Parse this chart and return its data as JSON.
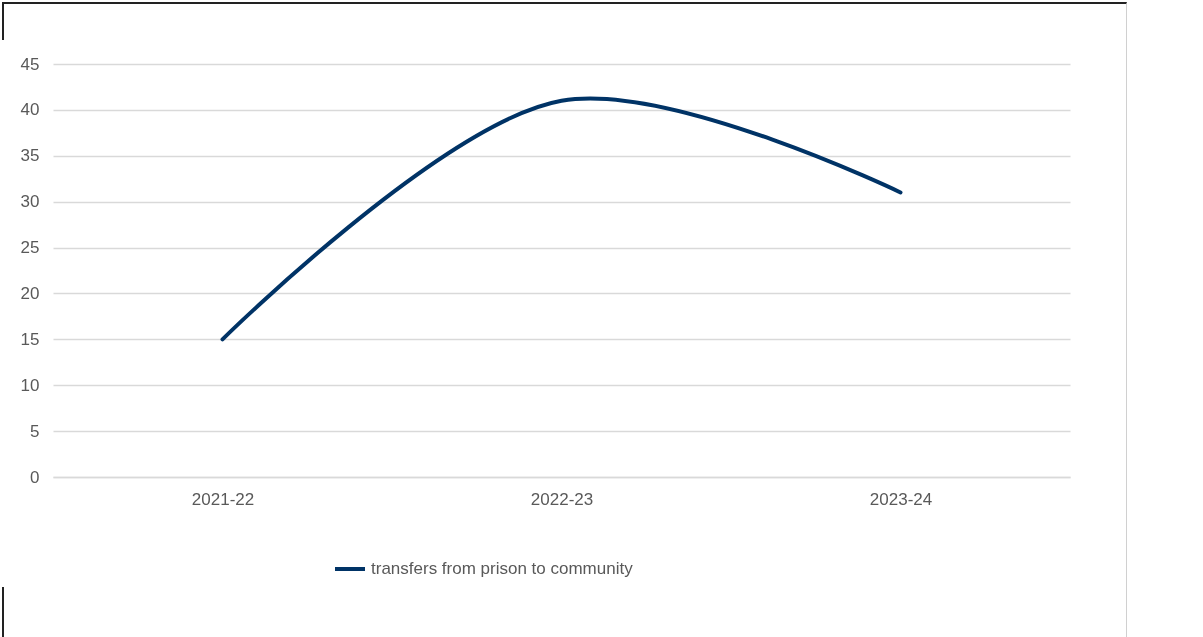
{
  "chart_data": {
    "type": "line",
    "categories": [
      "2021-22",
      "2022-23",
      "2023-24"
    ],
    "series": [
      {
        "name": "transfers from prison to community",
        "color": "#003366",
        "values": [
          15,
          41,
          31
        ]
      }
    ],
    "ylim": [
      0,
      45
    ],
    "yticks": [
      0,
      5,
      10,
      15,
      20,
      25,
      30,
      35,
      40,
      45
    ],
    "grid": "y",
    "legend": "bottom",
    "marker": "none",
    "line_style": "solid"
  }
}
